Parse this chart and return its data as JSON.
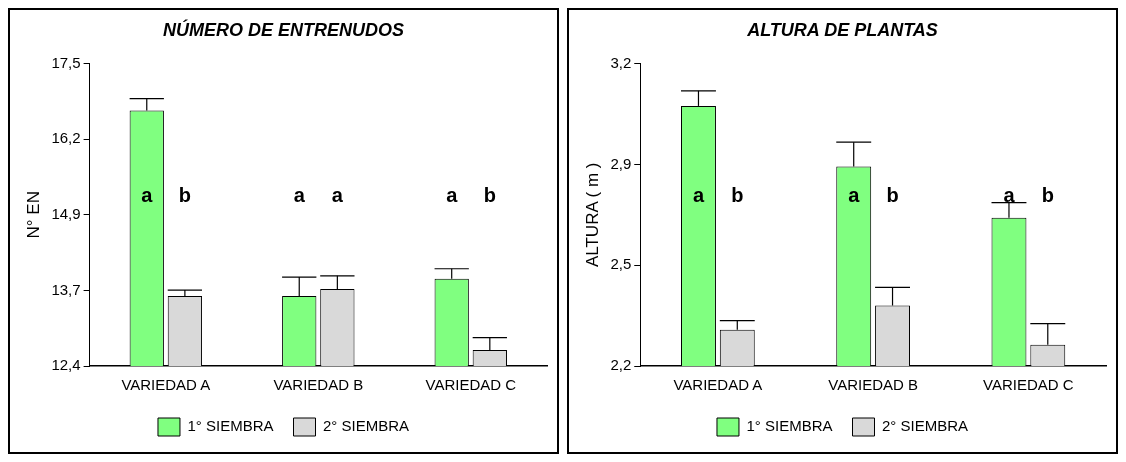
{
  "chart_data": [
    {
      "type": "bar",
      "title": "NÚMERO DE ENTRENUDOS",
      "ylabel": "N° EN",
      "categories": [
        "VARIEDAD A",
        "VARIEDAD B",
        "VARIEDAD C"
      ],
      "series": [
        {
          "name": "1° SIEMBRA",
          "color": "#80ff80",
          "values": [
            16.71,
            13.58,
            13.87
          ],
          "errors": [
            [
              16.71,
              16.91
            ],
            [
              13.58,
              13.9
            ],
            [
              13.87,
              14.04
            ]
          ]
        },
        {
          "name": "2° SIEMBRA",
          "color": "#d9d9d9",
          "values": [
            13.58,
            13.7,
            12.67
          ],
          "errors": [
            [
              13.58,
              13.68
            ],
            [
              13.7,
              13.92
            ],
            [
              12.67,
              12.88
            ]
          ]
        }
      ],
      "ylim": [
        12.4,
        17.5
      ],
      "yticks": [
        {
          "value": 12.4,
          "label": "12,4"
        },
        {
          "value": 13.675,
          "label": "13,7"
        },
        {
          "value": 14.95,
          "label": "14,9"
        },
        {
          "value": 16.225,
          "label": "16,2"
        },
        {
          "value": 17.5,
          "label": "17,5"
        }
      ],
      "annotations": [
        "a",
        "b",
        "a",
        "a",
        "a",
        "b"
      ],
      "grid": false,
      "legend": "bottom"
    },
    {
      "type": "bar",
      "title": "ALTURA DE PLANTAS",
      "ylabel": "ALTURA ( m )",
      "categories": [
        "VARIEDAD A",
        "VARIEDAD B",
        "VARIEDAD C"
      ],
      "series": [
        {
          "name": "1° SIEMBRA",
          "color": "#80ff80",
          "values": [
            3.06,
            2.86,
            2.69
          ],
          "errors": [
            [
              3.06,
              3.11
            ],
            [
              2.86,
              2.94
            ],
            [
              2.69,
              2.74
            ]
          ]
        },
        {
          "name": "2° SIEMBRA",
          "color": "#d9d9d9",
          "values": [
            2.32,
            2.4,
            2.27
          ],
          "errors": [
            [
              2.32,
              2.35
            ],
            [
              2.4,
              2.46
            ],
            [
              2.27,
              2.34
            ]
          ]
        }
      ],
      "ylim": [
        2.2,
        3.2
      ],
      "yticks": [
        {
          "value": 2.2,
          "label": "2,2"
        },
        {
          "value": 2.5333,
          "label": "2,5"
        },
        {
          "value": 2.8667,
          "label": "2,9"
        },
        {
          "value": 3.2,
          "label": "3,2"
        }
      ],
      "annotations": [
        "a",
        "b",
        "a",
        "b",
        "a",
        "b"
      ],
      "grid": false,
      "legend": "bottom"
    }
  ]
}
